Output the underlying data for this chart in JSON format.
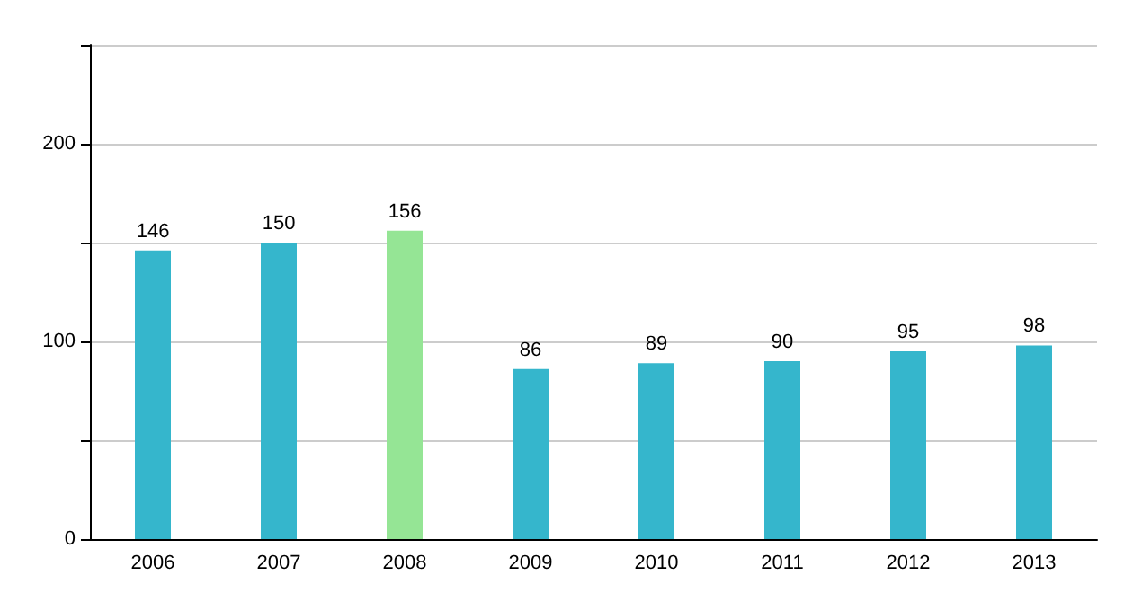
{
  "chart_data": {
    "type": "bar",
    "categories": [
      "2006",
      "2007",
      "2008",
      "2009",
      "2010",
      "2011",
      "2012",
      "2013"
    ],
    "values": [
      146,
      150,
      156,
      86,
      89,
      90,
      95,
      98
    ],
    "colors": [
      "#35b6cc",
      "#35b6cc",
      "#95e595",
      "#35b6cc",
      "#35b6cc",
      "#35b6cc",
      "#35b6cc",
      "#35b6cc"
    ],
    "data_labels": true,
    "ylim": [
      0,
      250
    ],
    "yticks": [
      0,
      {
        "value": 50,
        "label": null
      },
      100,
      {
        "value": 150,
        "label": null
      },
      200,
      {
        "value": 250,
        "label": null
      }
    ],
    "grid": "y"
  }
}
